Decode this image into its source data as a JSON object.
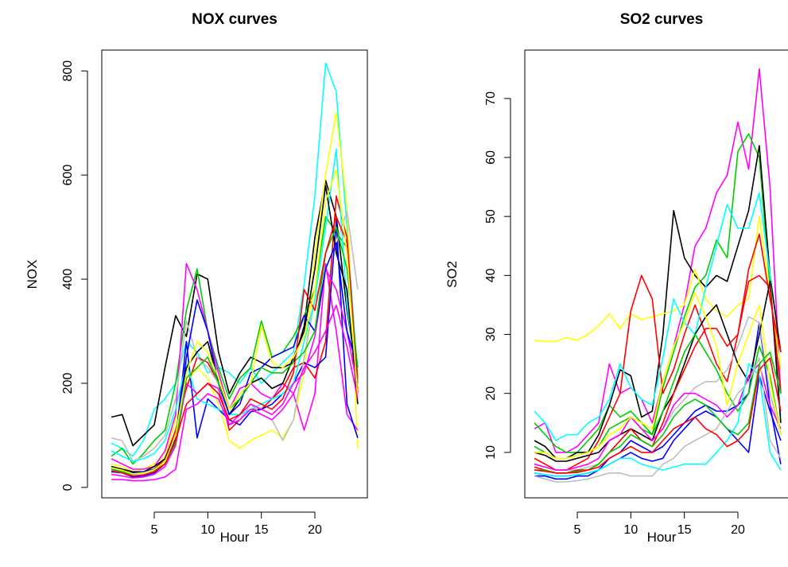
{
  "chart_data": [
    {
      "type": "line",
      "title": "NOX curves",
      "xlabel": "Hour",
      "ylabel": "NOX",
      "xlim": [
        0.1,
        24.9
      ],
      "ylim": [
        -20,
        840
      ],
      "xticks": [
        5,
        10,
        15,
        20
      ],
      "yticks": [
        0,
        200,
        400,
        600,
        800
      ],
      "x": [
        1,
        2,
        3,
        4,
        5,
        6,
        7,
        8,
        9,
        10,
        11,
        12,
        13,
        14,
        15,
        16,
        17,
        18,
        19,
        20,
        21,
        22,
        23,
        24
      ],
      "legend": "none",
      "grid": false,
      "series": [
        {
          "color": "#00ffff",
          "values": [
            85,
            75,
            60,
            90,
            150,
            170,
            200,
            280,
            260,
            220,
            230,
            220,
            200,
            230,
            200,
            220,
            240,
            260,
            390,
            560,
            815,
            760,
            500,
            210
          ]
        },
        {
          "color": "#000000",
          "values": [
            135,
            140,
            80,
            100,
            120,
            230,
            330,
            290,
            410,
            400,
            260,
            180,
            220,
            250,
            240,
            230,
            230,
            240,
            310,
            480,
            590,
            520,
            340,
            210
          ]
        },
        {
          "color": "#ffff00",
          "values": [
            45,
            40,
            30,
            35,
            45,
            60,
            130,
            200,
            230,
            210,
            160,
            90,
            75,
            90,
            100,
            110,
            95,
            130,
            220,
            450,
            600,
            720,
            540,
            75
          ]
        },
        {
          "color": "#00cc00",
          "values": [
            60,
            75,
            45,
            65,
            90,
            110,
            200,
            340,
            420,
            300,
            230,
            170,
            210,
            230,
            320,
            250,
            260,
            290,
            330,
            380,
            520,
            490,
            460,
            210
          ]
        },
        {
          "color": "#ff00ff",
          "values": [
            55,
            45,
            35,
            35,
            40,
            70,
            140,
            430,
            380,
            300,
            220,
            150,
            190,
            200,
            180,
            170,
            200,
            180,
            110,
            180,
            430,
            300,
            140,
            110
          ]
        },
        {
          "color": "#ff0000",
          "values": [
            40,
            35,
            25,
            30,
            35,
            55,
            110,
            190,
            250,
            240,
            200,
            110,
            130,
            150,
            150,
            170,
            190,
            230,
            240,
            210,
            280,
            560,
            480,
            200
          ]
        },
        {
          "color": "#0000ff",
          "values": [
            30,
            28,
            20,
            22,
            28,
            45,
            90,
            280,
            95,
            170,
            150,
            130,
            120,
            145,
            150,
            160,
            180,
            200,
            240,
            230,
            250,
            510,
            160,
            95
          ]
        },
        {
          "color": "#bebebe",
          "values": [
            95,
            90,
            50,
            60,
            75,
            100,
            170,
            320,
            250,
            230,
            200,
            120,
            130,
            160,
            140,
            130,
            90,
            130,
            250,
            360,
            420,
            470,
            530,
            380
          ]
        },
        {
          "color": "#00ffff",
          "values": [
            70,
            60,
            50,
            55,
            65,
            90,
            150,
            240,
            170,
            160,
            150,
            140,
            140,
            150,
            160,
            170,
            180,
            200,
            280,
            360,
            500,
            650,
            350,
            200
          ]
        },
        {
          "color": "#000000",
          "values": [
            40,
            35,
            30,
            30,
            40,
            55,
            100,
            230,
            260,
            280,
            200,
            140,
            170,
            200,
            210,
            190,
            200,
            250,
            300,
            420,
            580,
            450,
            380,
            160
          ]
        },
        {
          "color": "#ff00ff",
          "values": [
            25,
            22,
            18,
            20,
            25,
            40,
            80,
            200,
            180,
            200,
            190,
            120,
            140,
            160,
            150,
            140,
            160,
            200,
            220,
            290,
            420,
            380,
            300,
            190
          ]
        },
        {
          "color": "#0000ff",
          "values": [
            35,
            30,
            28,
            30,
            35,
            50,
            95,
            250,
            360,
            300,
            200,
            140,
            160,
            220,
            230,
            250,
            260,
            270,
            330,
            300,
            420,
            470,
            300,
            230
          ]
        },
        {
          "color": "#00cc00",
          "values": [
            35,
            30,
            25,
            28,
            33,
            45,
            85,
            210,
            230,
            250,
            200,
            150,
            170,
            200,
            230,
            220,
            220,
            240,
            260,
            300,
            450,
            500,
            420,
            230
          ]
        },
        {
          "color": "#ff0000",
          "values": [
            32,
            28,
            22,
            24,
            30,
            45,
            90,
            160,
            180,
            200,
            180,
            130,
            140,
            170,
            160,
            150,
            170,
            220,
            380,
            340,
            450,
            520,
            470,
            180
          ]
        },
        {
          "color": "#ffff00",
          "values": [
            38,
            33,
            26,
            28,
            34,
            50,
            100,
            220,
            280,
            260,
            210,
            150,
            180,
            200,
            310,
            240,
            230,
            250,
            290,
            380,
            550,
            610,
            450,
            170
          ]
        },
        {
          "color": "#ff00ff",
          "values": [
            15,
            15,
            13,
            13,
            15,
            20,
            35,
            150,
            160,
            180,
            170,
            120,
            130,
            150,
            140,
            130,
            150,
            180,
            230,
            260,
            300,
            350,
            270,
            170
          ]
        }
      ]
    },
    {
      "type": "line",
      "title": "SO2 curves",
      "xlabel": "Hour",
      "ylabel": "SO2",
      "xlim": [
        0.1,
        24.9
      ],
      "ylim": [
        2.3,
        78.2
      ],
      "xticks": [
        5,
        10,
        15,
        20
      ],
      "yticks": [
        10,
        20,
        30,
        40,
        50,
        60,
        70
      ],
      "x": [
        1,
        2,
        3,
        4,
        5,
        6,
        7,
        8,
        9,
        10,
        11,
        12,
        13,
        14,
        15,
        16,
        17,
        18,
        19,
        20,
        21,
        22,
        23,
        24
      ],
      "legend": "none",
      "grid": false,
      "series": [
        {
          "color": "#ff00ff",
          "values": [
            14,
            15,
            10,
            10,
            11,
            13,
            15,
            25,
            20,
            21,
            19,
            15,
            22,
            28,
            35,
            45,
            48,
            54,
            57,
            66,
            58,
            75,
            55,
            20
          ]
        },
        {
          "color": "#00cc00",
          "values": [
            15,
            13,
            11,
            10,
            10,
            12,
            14,
            18,
            16,
            17,
            15,
            13,
            21,
            27,
            33,
            38,
            40,
            46,
            43,
            61,
            64,
            60,
            38,
            20
          ]
        },
        {
          "color": "#000000",
          "values": [
            12,
            11,
            9,
            9,
            10,
            10,
            13,
            18,
            24,
            23,
            16,
            17,
            30,
            51,
            43,
            40,
            38,
            40,
            39,
            45,
            51,
            62,
            40,
            27
          ]
        },
        {
          "color": "#ffff00",
          "values": [
            29,
            28.8,
            28.8,
            29.5,
            29,
            30,
            31.5,
            33.5,
            31,
            33.5,
            32.5,
            33,
            33.5,
            34,
            35,
            41,
            36,
            34,
            33,
            35,
            36,
            50,
            37,
            24
          ]
        },
        {
          "color": "#ff0000",
          "values": [
            9,
            8,
            7,
            7,
            8,
            9,
            12,
            16,
            20,
            34,
            40,
            36,
            20,
            24,
            30,
            35,
            30,
            25,
            22,
            30,
            41,
            47,
            36,
            27
          ]
        },
        {
          "color": "#00ffff",
          "values": [
            17,
            15,
            12,
            13,
            13,
            15,
            16,
            19,
            25,
            21,
            19,
            18,
            26,
            36,
            32,
            30,
            38,
            45,
            52,
            48,
            48,
            54,
            40,
            16
          ]
        },
        {
          "color": "#0000ff",
          "values": [
            6,
            6,
            5.5,
            5.5,
            6,
            6,
            7,
            9,
            10,
            12,
            11,
            10,
            11,
            13,
            15,
            17,
            18,
            17,
            17,
            18,
            20,
            32,
            18,
            8
          ]
        },
        {
          "color": "#bebebe",
          "values": [
            8,
            7.5,
            7,
            7,
            7,
            7.5,
            8,
            10,
            12,
            14,
            13,
            12,
            14,
            17,
            19,
            21,
            22,
            22,
            24,
            28,
            33,
            32,
            20,
            13
          ]
        },
        {
          "color": "#000000",
          "values": [
            10,
            9.5,
            8.5,
            8.5,
            9,
            9.5,
            10,
            12,
            13,
            14,
            13,
            12,
            17,
            20,
            25,
            30,
            33,
            35,
            30,
            25,
            22,
            30,
            39,
            15
          ]
        },
        {
          "color": "#ff0000",
          "values": [
            7.5,
            7,
            6.5,
            6.5,
            7,
            7,
            8,
            10,
            12,
            14,
            12,
            11,
            15,
            20,
            24,
            28,
            31,
            31,
            28,
            30,
            39,
            40,
            38,
            20
          ]
        },
        {
          "color": "#00cc00",
          "values": [
            11,
            10,
            9,
            9,
            9.5,
            10,
            11,
            14,
            15,
            16,
            14,
            13,
            17,
            22,
            27,
            30,
            27,
            24,
            20,
            17,
            20,
            28,
            23,
            13
          ]
        },
        {
          "color": "#ff00ff",
          "values": [
            8,
            7.5,
            7,
            7,
            7.5,
            8,
            9,
            12,
            13,
            16,
            14,
            12,
            14,
            18,
            20,
            20,
            19,
            18,
            16,
            18,
            23,
            25,
            18,
            14
          ]
        },
        {
          "color": "#0000ff",
          "values": [
            6.5,
            6.2,
            6,
            6,
            6.2,
            6.5,
            7,
            8,
            9,
            10,
            9,
            8.5,
            9,
            12,
            14,
            16,
            17,
            16,
            14,
            12,
            10,
            23,
            17,
            12
          ]
        },
        {
          "color": "#00ffff",
          "values": [
            6.5,
            6.2,
            6,
            6,
            6.2,
            6.5,
            7,
            8,
            9,
            9,
            8,
            7.5,
            7,
            7.5,
            8,
            8,
            8,
            10,
            12,
            15,
            25,
            23,
            10,
            7
          ]
        },
        {
          "color": "#bebebe",
          "values": [
            6,
            5.5,
            5,
            5,
            5.2,
            5.5,
            6,
            6.5,
            6.5,
            6,
            6,
            6,
            8,
            9,
            11,
            12,
            13,
            14,
            17,
            20,
            22,
            26,
            12,
            9
          ]
        },
        {
          "color": "#ffff00",
          "values": [
            10,
            10,
            9,
            9,
            9.5,
            10,
            11,
            13,
            14,
            16,
            15,
            14,
            22,
            28,
            32,
            37,
            33,
            28,
            18,
            25,
            30,
            35,
            22,
            13
          ]
        },
        {
          "color": "#00cc00",
          "values": [
            7,
            7,
            6.5,
            6.5,
            6.8,
            7,
            8,
            10,
            11,
            13,
            12,
            11,
            13,
            16,
            18,
            19,
            18,
            16,
            14,
            13,
            15,
            25,
            27,
            20
          ]
        },
        {
          "color": "#ff0000",
          "values": [
            7,
            6.8,
            6.5,
            6.5,
            6.6,
            7,
            7.5,
            9,
            10,
            11,
            10,
            10,
            12,
            14,
            15,
            16,
            14,
            13,
            11,
            12,
            14,
            24,
            26,
            17
          ]
        }
      ]
    }
  ]
}
